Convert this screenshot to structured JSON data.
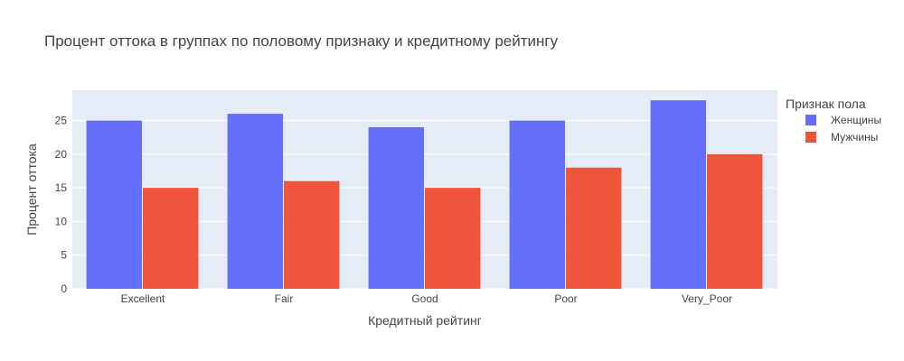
{
  "chart_data": {
    "type": "bar",
    "title": "Процент оттока в группах по половому признаку и кредитному рейтингу",
    "xlabel": "Кредитный рейтинг",
    "ylabel": "Процент оттока",
    "categories": [
      "Excellent",
      "Fair",
      "Good",
      "Poor",
      "Very_Poor"
    ],
    "series": [
      {
        "name": "Женщины",
        "values": [
          25,
          26,
          24,
          25,
          28
        ],
        "color": "#636efa"
      },
      {
        "name": "Мужчины",
        "values": [
          15,
          16,
          15,
          18,
          20
        ],
        "color": "#ef553b"
      }
    ],
    "yticks": [
      0,
      5,
      10,
      15,
      20,
      25
    ],
    "ylim": [
      0,
      29.5
    ],
    "grid": true,
    "legend": {
      "title": "Признак пола",
      "placement": "top-right"
    },
    "plot_background": "#e5ecf6"
  }
}
